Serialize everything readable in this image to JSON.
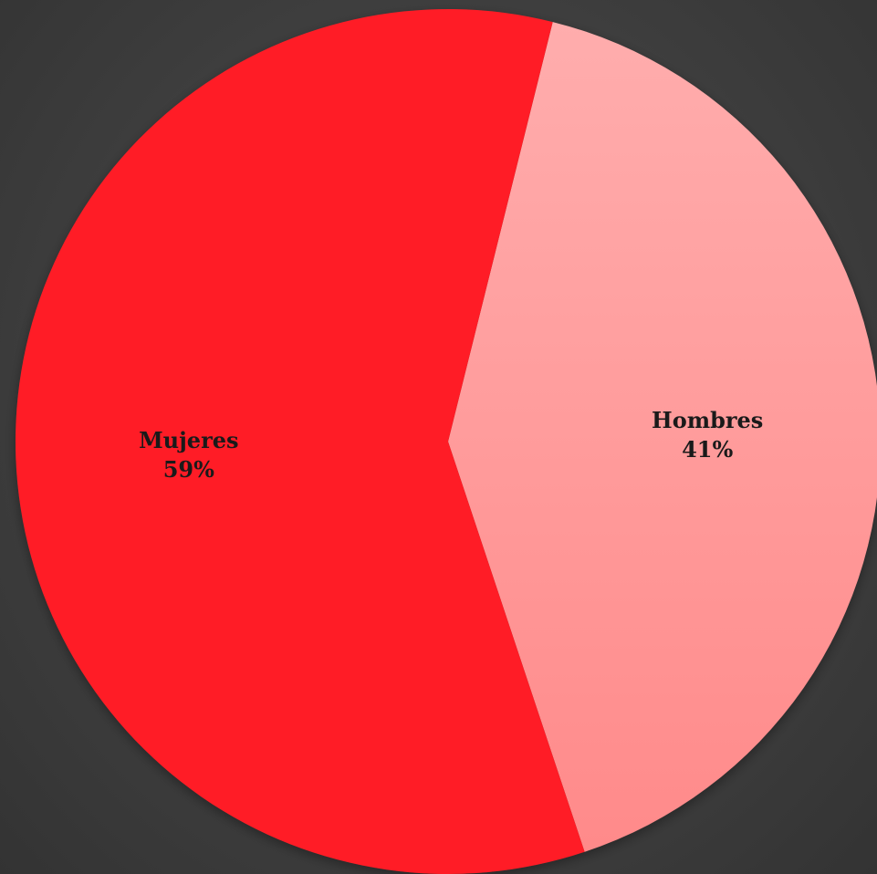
{
  "chart_data": {
    "type": "pie",
    "slices": [
      {
        "label": "Hombres",
        "value": 41,
        "value_label": "41%",
        "color": "#ff9c9c"
      },
      {
        "label": "Mujeres",
        "value": 59,
        "value_label": "59%",
        "color": "#ff1f25"
      }
    ],
    "title": "",
    "legend": "none",
    "data_labels": "inside"
  },
  "colors": {
    "background": "#3c3c3c",
    "hombres_light": "#ffa9a9",
    "hombres_dark": "#ff8b8b",
    "mujeres": "#ff1f25",
    "label_text": "#1a1a1a"
  }
}
